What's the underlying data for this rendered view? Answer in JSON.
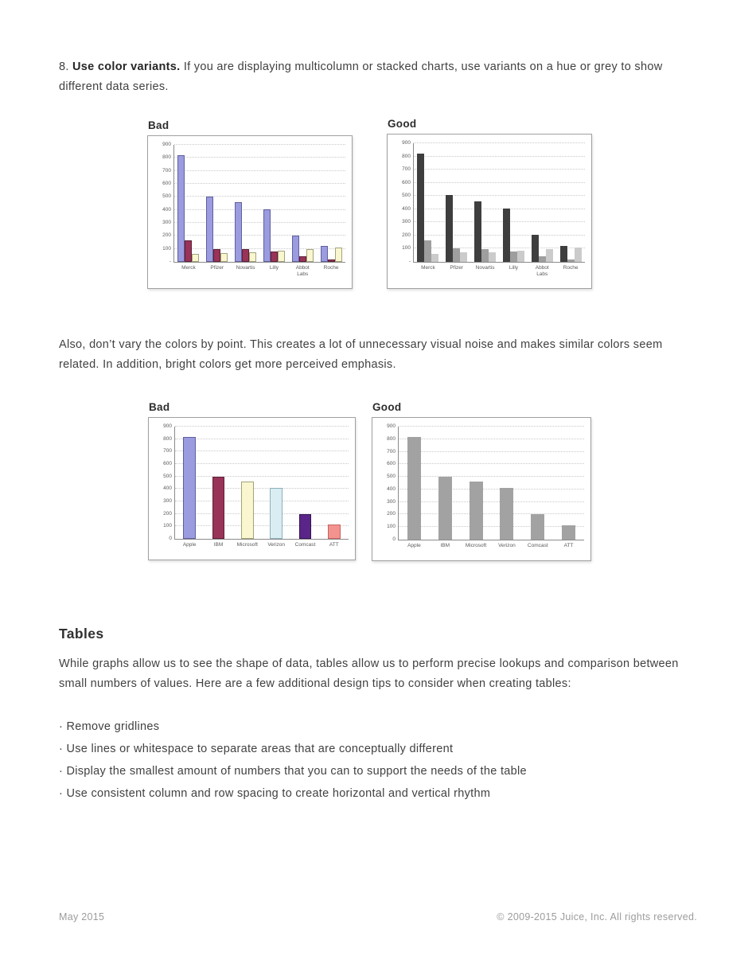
{
  "page": {
    "section8": {
      "prefix": "8. ",
      "bold_lead": "Use color variants.",
      "rest": " If you are displaying multicolumn or stacked charts, use variants on a hue or grey to show different data series."
    },
    "para_dont_vary": "Also, don’t vary the colors by point. This creates a lot of unnecessary visual noise and makes similar colors seem related. In addition, bright colors get more perceived emphasis.",
    "tables_heading": "Tables",
    "tables_para": "While graphs allow us to see the shape of data, tables allow us to perform precise lookups and comparison between small numbers of values. Here are a few additional design tips to consider when creating tables:",
    "bullets": [
      "· Remove gridlines",
      "· Use lines or whitespace to separate areas that are conceptually different",
      "· Display the smallest amount of numbers that you can to support the needs of the table",
      "· Use consistent column and row spacing to create horizontal and vertical rhythm"
    ],
    "footer": {
      "left": "May 2015",
      "right": "© 2009-2015 Juice, Inc. All rights reserved."
    }
  },
  "colors": {
    "excel_periwinkle": "#9b9bdf",
    "excel_plum": "#993358",
    "excel_cream": "#f9f6d0",
    "excel_pale_blue": "#d9edf3",
    "excel_dark_purple": "#5a2589",
    "excel_salmon": "#f2938f",
    "grey_dark": "#3e3e3e",
    "grey_medium": "#9e9e9e",
    "grey_light": "#cbcbcb",
    "grey_bar": "#a2a2a2"
  },
  "chart_data": [
    {
      "id": "bad-multi",
      "title": "Bad",
      "type": "bar",
      "categories": [
        "Merck",
        "Pfizer",
        "Novartis",
        "Lilly",
        "Abbot Labs",
        "Roche"
      ],
      "series": [
        {
          "color": "#9b9bdf",
          "border": "#5f5f9e",
          "values": [
            820,
            505,
            460,
            405,
            205,
            120
          ]
        },
        {
          "color": "#993358",
          "border": "#5e1f38",
          "values": [
            165,
            100,
            95,
            80,
            40,
            20
          ]
        },
        {
          "color": "#f9f6d0",
          "border": "#a3a37a",
          "values": [
            60,
            70,
            75,
            85,
            95,
            110
          ]
        }
      ],
      "ylim": [
        0,
        900
      ],
      "ytick_step": 100,
      "zero_label": "-",
      "wrap_xlabels": true,
      "grid": true,
      "legend": "none"
    },
    {
      "id": "good-multi",
      "title": "Good",
      "type": "bar",
      "categories": [
        "Merck",
        "Pfizer",
        "Novartis",
        "Lilly",
        "Abbot Labs",
        "Roche"
      ],
      "series": [
        {
          "color": "#3e3e3e",
          "border": null,
          "values": [
            820,
            505,
            460,
            405,
            205,
            120
          ]
        },
        {
          "color": "#9e9e9e",
          "border": null,
          "values": [
            165,
            100,
            95,
            80,
            40,
            20
          ]
        },
        {
          "color": "#cbcbcb",
          "border": null,
          "values": [
            60,
            70,
            75,
            85,
            95,
            110
          ]
        }
      ],
      "ylim": [
        0,
        900
      ],
      "ytick_step": 100,
      "zero_label": "-",
      "wrap_xlabels": true,
      "grid": true,
      "legend": "none"
    },
    {
      "id": "bad-single",
      "title": "Bad",
      "type": "bar",
      "categories": [
        "Apple",
        "IBM",
        "Microsoft",
        "Verizon",
        "Comcast",
        "ATT"
      ],
      "series": [
        {
          "colors": [
            "#9b9bdf",
            "#993358",
            "#f9f6d0",
            "#d9edf3",
            "#5a2589",
            "#f2938f"
          ],
          "borders": [
            "#5f5f9e",
            "#5e1f38",
            "#a3a37a",
            "#8fb0ba",
            "#321253",
            "#c9625e"
          ],
          "values": [
            820,
            500,
            460,
            410,
            200,
            115
          ]
        }
      ],
      "ylim": [
        0,
        900
      ],
      "ytick_step": 100,
      "zero_label": "0",
      "wrap_xlabels": false,
      "grid": true,
      "legend": "none"
    },
    {
      "id": "good-single",
      "title": "Good",
      "type": "bar",
      "categories": [
        "Apple",
        "IBM",
        "Microsoft",
        "Verizon",
        "Comcast",
        "ATT"
      ],
      "series": [
        {
          "color": "#a2a2a2",
          "border": null,
          "values": [
            820,
            500,
            460,
            410,
            200,
            115
          ]
        }
      ],
      "ylim": [
        0,
        900
      ],
      "ytick_step": 100,
      "zero_label": "0",
      "wrap_xlabels": false,
      "grid": true,
      "legend": "none"
    }
  ]
}
